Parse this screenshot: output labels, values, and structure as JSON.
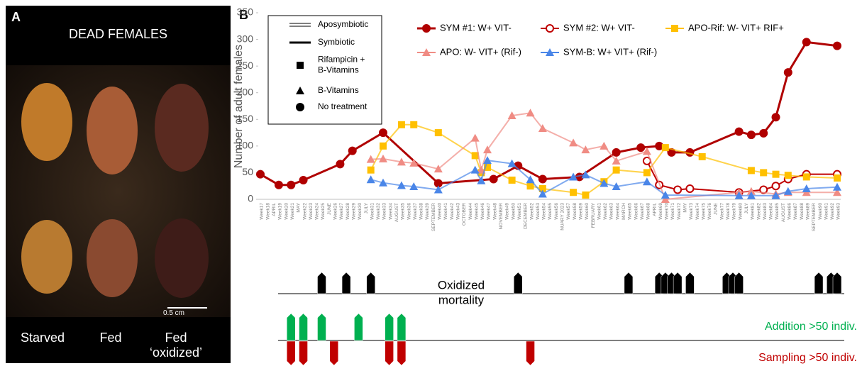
{
  "panel_a": {
    "label": "A",
    "title": "DEAD FEMALES",
    "scale_bar": "0.5 cm",
    "labels": [
      "Starved",
      "Fed",
      "Fed ‘oxidized’"
    ]
  },
  "chart_data": {
    "type": "line",
    "panel_label": "B",
    "ylabel": "Number of adult females",
    "ylim": [
      0,
      350
    ],
    "yticks": [
      0,
      50,
      100,
      150,
      200,
      250,
      300,
      350
    ],
    "categories": [
      "Week17",
      "Week18",
      "APRIL",
      "Week19",
      "Week20",
      "Week21",
      "MAY",
      "Week22",
      "Week23",
      "Week24",
      "Week25",
      "JUNE",
      "Week26",
      "Week27",
      "Week28",
      "Week29",
      "Week30",
      "JULY",
      "Week31",
      "Week32",
      "Week33",
      "Week34",
      "AUGUST",
      "Week35",
      "Week36",
      "Week37",
      "Week38",
      "Week39",
      "SEPTEMBER",
      "Week40",
      "Week41",
      "Week42",
      "Week43",
      "OCTOBER",
      "Week44",
      "Week45",
      "Week46",
      "Week47",
      "Week48",
      "NOVEMBER",
      "Week49",
      "Week50",
      "Week51",
      "DECEMBER",
      "Week52",
      "Week53",
      "Week54",
      "Week55",
      "Week56",
      "NUARY 2023",
      "Week57",
      "Week58",
      "Week59",
      "Week60",
      "FEBRUARY",
      "Week61",
      "Week62",
      "Week63",
      "Week64",
      "MARCH",
      "Week65",
      "Week66",
      "Week67",
      "Week68",
      "APRIL",
      "Week69",
      "Week70",
      "Week71",
      "Week72",
      "MAY",
      "Week73",
      "Week74",
      "Week75",
      "Week76",
      "JUNE",
      "Week77",
      "Week78",
      "Week79",
      "Week80",
      "JULY",
      "Week81",
      "Week82",
      "Week83",
      "Week84",
      "Week85",
      "AUGUST",
      "Week86",
      "Week87",
      "Week88",
      "Week89",
      "SEPTEMBER",
      "Week90",
      "Week91",
      "Week92",
      "Week93"
    ],
    "series": [
      {
        "name": "SYM #1: W+ VIT-",
        "color": "#b00000",
        "marker": "circle",
        "x": [
          "Week17",
          "Week19",
          "Week21",
          "Week22",
          "Week27",
          "Week29",
          "Week33",
          "Week40",
          "Week48",
          "Week51",
          "Week54",
          "Week59",
          "Week64",
          "Week67",
          "Week69",
          "Week71",
          "Week73",
          "Week80",
          "Week81",
          "Week83",
          "Week85",
          "Week86",
          "Week89",
          "Week93"
        ],
        "values": [
          47,
          27,
          27,
          36,
          66,
          91,
          125,
          30,
          38,
          63,
          38,
          42,
          88,
          97,
          100,
          88,
          88,
          127,
          121,
          124,
          154,
          238,
          295,
          288
        ]
      },
      {
        "name": "SYM #2: W+ VIT-",
        "color": "#c00000",
        "marker": "open-circle",
        "x": [
          "Week68",
          "Week69",
          "Week72",
          "Week73",
          "Week80",
          "Week83",
          "Week85",
          "Week86",
          "Week89",
          "Week93"
        ],
        "values": [
          72,
          27,
          18,
          20,
          13,
          18,
          25,
          38,
          47,
          47
        ]
      },
      {
        "name": "APO-Rif: W- VIT+ RIF+",
        "color": "#ffc000",
        "marker": "square",
        "x": [
          "Week31",
          "Week33",
          "Week35",
          "Week37",
          "Week40",
          "Week45",
          "Week46",
          "Week47",
          "Week50",
          "Week52",
          "Week54",
          "Week58",
          "Week60",
          "Week62",
          "Week64",
          "Week68",
          "Week70",
          "Week75",
          "Week81",
          "Week83",
          "Week85",
          "Week86",
          "Week89",
          "Week93"
        ],
        "values": [
          55,
          100,
          140,
          140,
          125,
          82,
          50,
          60,
          36,
          25,
          20,
          13,
          8,
          33,
          55,
          50,
          97,
          80,
          54,
          50,
          47,
          45,
          42,
          40
        ]
      },
      {
        "name": "APO: W- VIT+ (Rif-)",
        "color": "#f08c84",
        "marker": "triangle",
        "x": [
          "Week31",
          "Week33",
          "Week35",
          "Week37",
          "Week40",
          "Week45",
          "Week46",
          "Week47",
          "Week50",
          "Week52",
          "Week54",
          "Week58",
          "Week60",
          "Week62",
          "Week64",
          "Week68",
          "Week70",
          "Week80",
          "Week81",
          "Week85",
          "Week86",
          "Week89",
          "Week93"
        ],
        "values": [
          75,
          76,
          70,
          68,
          57,
          115,
          55,
          93,
          157,
          162,
          133,
          106,
          93,
          100,
          72,
          90,
          0,
          13,
          15,
          10,
          13,
          13,
          13
        ]
      },
      {
        "name": "SYM-B: W+ VIT+ (Rif-)",
        "color": "#4a86e8",
        "marker": "triangle",
        "x": [
          "Week31",
          "Week33",
          "Week35",
          "Week37",
          "Week40",
          "Week45",
          "Week46",
          "Week47",
          "Week50",
          "Week52",
          "Week54",
          "Week58",
          "Week60",
          "Week62",
          "Week64",
          "Week68",
          "Week70",
          "Week80",
          "Week81",
          "Week85",
          "Week86",
          "Week89",
          "Week93"
        ],
        "values": [
          37,
          31,
          26,
          24,
          18,
          55,
          35,
          73,
          67,
          37,
          10,
          42,
          46,
          30,
          24,
          33,
          8,
          7,
          7,
          7,
          15,
          20,
          23
        ]
      }
    ],
    "key": [
      {
        "text": [
          "Aposymbiotic"
        ],
        "symbol": "double-line"
      },
      {
        "text": [
          "Symbiotic"
        ],
        "symbol": "line"
      },
      {
        "text": [
          "Rifampicin +",
          "B-Vitamins"
        ],
        "symbol": "square"
      },
      {
        "text": [
          "B-Vitamins"
        ],
        "symbol": "triangle"
      },
      {
        "text": [
          "No treatment"
        ],
        "symbol": "circle"
      }
    ],
    "events": [
      {
        "label": [
          "Oxidized",
          "mortality"
        ],
        "color": "#000000",
        "direction": "up",
        "x": [
          "Week25",
          "Week28",
          "Week31",
          "Week51",
          "Week65",
          "Week69",
          "Week70",
          "Week71",
          "Week72",
          "Week73",
          "Week78",
          "Week79",
          "Week80",
          "Week90",
          "Week92",
          "Week93"
        ]
      },
      {
        "label": [
          "Addition >50 indiv."
        ],
        "color": "#00b050",
        "direction": "up",
        "x": [
          "Week21",
          "Week22",
          "Week25",
          "Week30",
          "Week34",
          "Week35"
        ]
      },
      {
        "label": [
          "Sampling >50 indiv."
        ],
        "color": "#c00000",
        "direction": "down",
        "x": [
          "Week21",
          "Week22",
          "Week26",
          "Week34",
          "Week35",
          "Week52"
        ]
      }
    ]
  }
}
